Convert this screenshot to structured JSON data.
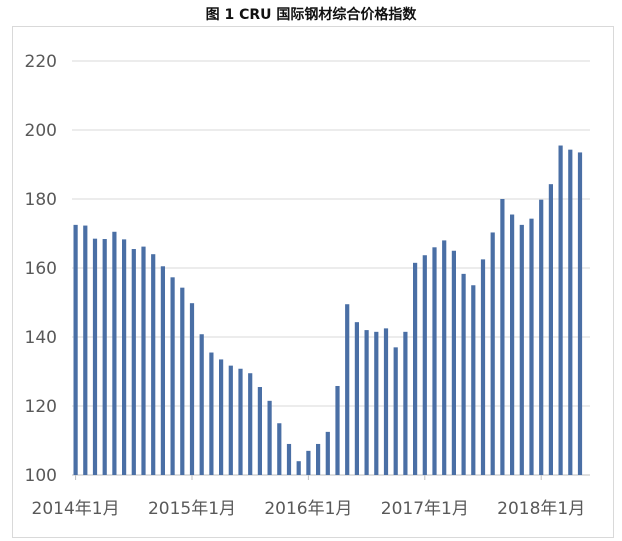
{
  "title": "图 1    CRU 国际钢材综合价格指数",
  "chart_data": {
    "type": "bar",
    "title": "图 1    CRU 国际钢材综合价格指数",
    "xlabel": "",
    "ylabel": "",
    "ylim": [
      100,
      220
    ],
    "yticks": [
      100,
      120,
      140,
      160,
      180,
      200,
      220
    ],
    "grid": true,
    "bar_color": "#4A6FA5",
    "x_tick_labels": [
      {
        "index": 0,
        "label": "2014年1月"
      },
      {
        "index": 12,
        "label": "2015年1月"
      },
      {
        "index": 24,
        "label": "2016年1月"
      },
      {
        "index": 36,
        "label": "2017年1月"
      },
      {
        "index": 48,
        "label": "2018年1月"
      }
    ],
    "categories": [
      "2014-01",
      "2014-02",
      "2014-03",
      "2014-04",
      "2014-05",
      "2014-06",
      "2014-07",
      "2014-08",
      "2014-09",
      "2014-10",
      "2014-11",
      "2014-12",
      "2015-01",
      "2015-02",
      "2015-03",
      "2015-04",
      "2015-05",
      "2015-06",
      "2015-07",
      "2015-08",
      "2015-09",
      "2015-10",
      "2015-11",
      "2015-12",
      "2016-01",
      "2016-02",
      "2016-03",
      "2016-04",
      "2016-05",
      "2016-06",
      "2016-07",
      "2016-08",
      "2016-09",
      "2016-10",
      "2016-11",
      "2016-12",
      "2017-01",
      "2017-02",
      "2017-03",
      "2017-04",
      "2017-05",
      "2017-06",
      "2017-07",
      "2017-08",
      "2017-09",
      "2017-10",
      "2017-11",
      "2017-12",
      "2018-01",
      "2018-02",
      "2018-03",
      "2018-04",
      "2018-05"
    ],
    "values": [
      172.5,
      172.3,
      168.5,
      168.4,
      170.5,
      168.3,
      165.5,
      166.2,
      164.0,
      160.5,
      157.3,
      154.3,
      149.8,
      140.8,
      135.5,
      133.5,
      131.7,
      130.8,
      129.5,
      125.5,
      121.5,
      115.0,
      109.0,
      104.0,
      107.0,
      109.0,
      112.5,
      125.8,
      149.5,
      144.3,
      142.0,
      141.5,
      142.5,
      137.0,
      141.5,
      161.5,
      163.7,
      166.0,
      168.0,
      165.0,
      158.3,
      155.0,
      162.5,
      170.3,
      180.0,
      175.5,
      172.5,
      174.3,
      179.8,
      184.3,
      195.5,
      194.3,
      193.5
    ]
  }
}
